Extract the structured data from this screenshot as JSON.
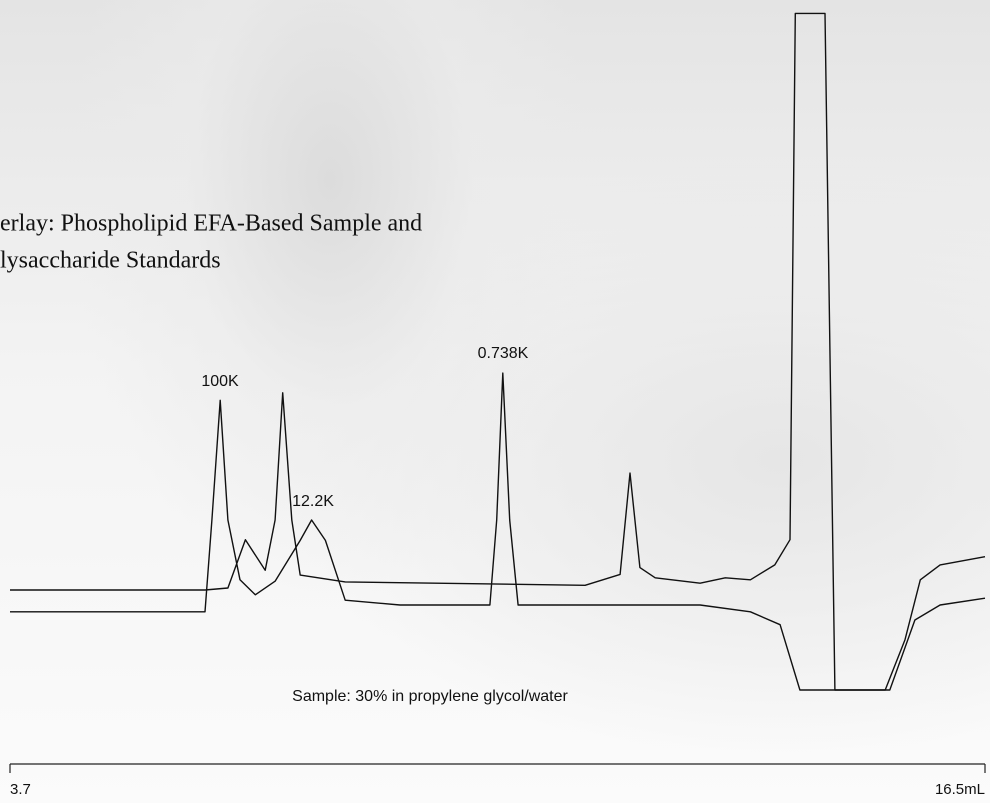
{
  "chart_data": {
    "type": "line",
    "title": [
      "erlay: Phospholipid EFA-Based Sample and",
      "lysaccharide Standards"
    ],
    "annotations": [
      "100K",
      "12.2K",
      "0.738K",
      "Sample: 30% in propylene glycol/water"
    ],
    "xlim": [
      3.7,
      16.5
    ],
    "xticks": [
      3.7,
      {
        "value": 16.5,
        "label": "16.5mL"
      }
    ],
    "ylim": [
      0,
      100
    ],
    "series": [
      {
        "color": "#111111",
        "x": [
          3.7,
          6.26,
          6.56,
          6.79,
          7.05,
          7.18,
          7.28,
          7.4,
          7.51,
          8.1,
          11.25,
          11.71,
          11.84,
          11.97,
          12.17,
          12.76,
          13.09,
          13.42,
          13.74,
          13.94,
          14.01,
          14.4,
          14.53,
          15.19,
          15.45,
          15.65,
          15.91,
          16.5
        ],
        "values": [
          14.7,
          14.7,
          15.0,
          22.1,
          17.6,
          25,
          43.7,
          25,
          16.9,
          15.9,
          15.4,
          17,
          31.9,
          18,
          16.5,
          15.7,
          16.5,
          16.2,
          18.4,
          22.1,
          99.5,
          99.5,
          0,
          0,
          7.4,
          16.2,
          18.4,
          19.6
        ]
      },
      {
        "color": "#111111",
        "x": [
          3.7,
          6.26,
          6.35,
          6.46,
          6.56,
          6.72,
          6.92,
          7.18,
          7.51,
          7.66,
          7.84,
          8.1,
          8.82,
          10.0,
          10.09,
          10.17,
          10.26,
          10.37,
          12.76,
          13.42,
          13.81,
          14.07,
          15.25,
          15.58,
          15.91,
          16.5
        ],
        "values": [
          11.5,
          11.5,
          25,
          42.6,
          25,
          16.2,
          14,
          16,
          22,
          25,
          22,
          13.2,
          12.5,
          12.5,
          25,
          46.6,
          25,
          12.5,
          12.5,
          11.5,
          9.6,
          0,
          0,
          10.3,
          12.5,
          13.5
        ]
      }
    ]
  }
}
